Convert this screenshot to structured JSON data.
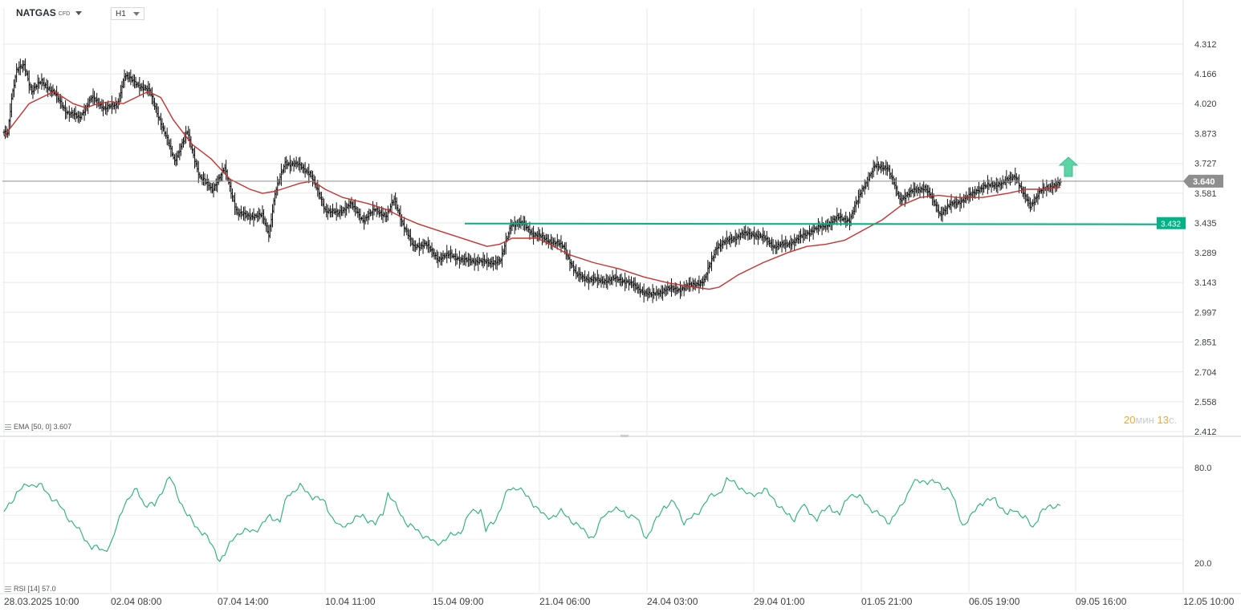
{
  "header": {
    "symbol": "NATGAS",
    "type": "CFD",
    "timeframe": "H1"
  },
  "price_axis_labels": [
    "4.312",
    "4.166",
    "4.020",
    "3.873",
    "3.727",
    "3.581",
    "3.435",
    "3.289",
    "3.143",
    "2.997",
    "2.851",
    "2.704",
    "2.558",
    "2.412"
  ],
  "rsi_axis_labels": [
    "80.0",
    "20.0"
  ],
  "time_axis_labels": [
    "28.03.2025  10:00",
    "02.04  08:00",
    "07.04  14:00",
    "10.04  11:00",
    "15.04  09:00",
    "21.04  06:00",
    "24.04  03:00",
    "29.04  01:00",
    "01.05  21:00",
    "06.05  19:00",
    "09.05  16:00",
    "12.05  10:00"
  ],
  "indicators": {
    "ema": {
      "name": "EMA",
      "params": "[50, 0]",
      "value": "3.607"
    },
    "rsi": {
      "name": "RSI",
      "params": "[14]",
      "value": "57.0"
    }
  },
  "last_price": {
    "value": "3.640",
    "bg": "#8e8e8e"
  },
  "level_line": {
    "value": "3.432",
    "color": "#00b386"
  },
  "countdown": {
    "min_value": "20",
    "min_unit": "мин",
    "sec_value": "13",
    "sec_unit": "с."
  },
  "colors": {
    "ema": "#c8322f",
    "rsi": "#26b07a",
    "bars": "#111111",
    "arrow": "#5dd4a6",
    "grid": "#e6e8eb"
  },
  "chart_data": [
    {
      "type": "ohlc",
      "instrument": "NATGAS CFD",
      "timeframe": "H1",
      "x": [
        "28.03.2025 10:00",
        "02.04 08:00",
        "07.04 14:00",
        "10.04 11:00",
        "15.04 09:00",
        "21.04 06:00",
        "24.04 03:00",
        "29.04 01:00",
        "01.05 21:00",
        "06.05 19:00"
      ],
      "close": [
        3.85,
        3.92,
        3.75,
        3.7,
        3.3,
        3.35,
        3.07,
        3.3,
        3.6,
        3.5
      ],
      "close_path": [
        [
          0,
          3.88
        ],
        [
          3,
          3.88
        ],
        [
          6,
          4.05
        ],
        [
          10,
          4.18
        ],
        [
          16,
          4.21
        ],
        [
          22,
          4.08
        ],
        [
          30,
          4.13
        ],
        [
          40,
          4.07
        ],
        [
          50,
          3.98
        ],
        [
          60,
          3.95
        ],
        [
          70,
          4.05
        ],
        [
          80,
          4.0
        ],
        [
          90,
          4.01
        ],
        [
          96,
          4.16
        ],
        [
          105,
          4.12
        ],
        [
          116,
          4.08
        ],
        [
          126,
          3.91
        ],
        [
          136,
          3.74
        ],
        [
          146,
          3.88
        ],
        [
          156,
          3.66
        ],
        [
          166,
          3.6
        ],
        [
          176,
          3.7
        ],
        [
          186,
          3.48
        ],
        [
          196,
          3.47
        ],
        [
          206,
          3.47
        ],
        [
          211,
          3.38
        ],
        [
          216,
          3.58
        ],
        [
          224,
          3.73
        ],
        [
          234,
          3.72
        ],
        [
          244,
          3.68
        ],
        [
          256,
          3.5
        ],
        [
          266,
          3.48
        ],
        [
          276,
          3.53
        ],
        [
          286,
          3.45
        ],
        [
          296,
          3.5
        ],
        [
          305,
          3.47
        ],
        [
          311,
          3.55
        ],
        [
          318,
          3.43
        ],
        [
          326,
          3.32
        ],
        [
          336,
          3.33
        ],
        [
          346,
          3.26
        ],
        [
          356,
          3.28
        ],
        [
          366,
          3.25
        ],
        [
          376,
          3.25
        ],
        [
          386,
          3.24
        ],
        [
          396,
          3.25
        ],
        [
          404,
          3.43
        ],
        [
          414,
          3.43
        ],
        [
          422,
          3.38
        ],
        [
          434,
          3.35
        ],
        [
          446,
          3.32
        ],
        [
          456,
          3.18
        ],
        [
          466,
          3.16
        ],
        [
          476,
          3.15
        ],
        [
          486,
          3.16
        ],
        [
          496,
          3.15
        ],
        [
          506,
          3.11
        ],
        [
          516,
          3.08
        ],
        [
          528,
          3.11
        ],
        [
          538,
          3.11
        ],
        [
          548,
          3.13
        ],
        [
          558,
          3.15
        ],
        [
          568,
          3.32
        ],
        [
          578,
          3.35
        ],
        [
          588,
          3.38
        ],
        [
          598,
          3.38
        ],
        [
          606,
          3.36
        ],
        [
          614,
          3.32
        ],
        [
          624,
          3.33
        ],
        [
          634,
          3.36
        ],
        [
          644,
          3.4
        ],
        [
          654,
          3.42
        ],
        [
          664,
          3.46
        ],
        [
          674,
          3.45
        ],
        [
          684,
          3.6
        ],
        [
          694,
          3.71
        ],
        [
          704,
          3.71
        ],
        [
          714,
          3.55
        ],
        [
          724,
          3.59
        ],
        [
          734,
          3.61
        ],
        [
          740,
          3.55
        ],
        [
          746,
          3.48
        ],
        [
          756,
          3.53
        ],
        [
          766,
          3.55
        ],
        [
          776,
          3.6
        ],
        [
          786,
          3.62
        ],
        [
          796,
          3.63
        ],
        [
          806,
          3.67
        ],
        [
          812,
          3.58
        ],
        [
          818,
          3.52
        ],
        [
          826,
          3.59
        ],
        [
          836,
          3.62
        ],
        [
          842,
          3.63
        ]
      ],
      "ema": {
        "name": "EMA [50, 0]",
        "last": 3.607,
        "path": [
          [
            0,
            3.86
          ],
          [
            20,
            4.02
          ],
          [
            40,
            4.08
          ],
          [
            55,
            4.02
          ],
          [
            65,
            4.0
          ],
          [
            75,
            4.02
          ],
          [
            85,
            4.03
          ],
          [
            95,
            4.02
          ],
          [
            105,
            4.05
          ],
          [
            115,
            4.08
          ],
          [
            125,
            4.05
          ],
          [
            135,
            3.94
          ],
          [
            150,
            3.82
          ],
          [
            165,
            3.75
          ],
          [
            180,
            3.65
          ],
          [
            196,
            3.6
          ],
          [
            206,
            3.58
          ],
          [
            216,
            3.59
          ],
          [
            226,
            3.61
          ],
          [
            236,
            3.63
          ],
          [
            246,
            3.64
          ],
          [
            256,
            3.6
          ],
          [
            270,
            3.56
          ],
          [
            290,
            3.53
          ],
          [
            305,
            3.5
          ],
          [
            315,
            3.47
          ],
          [
            330,
            3.43
          ],
          [
            350,
            3.39
          ],
          [
            370,
            3.35
          ],
          [
            385,
            3.32
          ],
          [
            395,
            3.33
          ],
          [
            405,
            3.36
          ],
          [
            415,
            3.36
          ],
          [
            425,
            3.36
          ],
          [
            435,
            3.33
          ],
          [
            450,
            3.28
          ],
          [
            470,
            3.24
          ],
          [
            490,
            3.21
          ],
          [
            510,
            3.17
          ],
          [
            530,
            3.14
          ],
          [
            550,
            3.12
          ],
          [
            562,
            3.11
          ],
          [
            570,
            3.12
          ],
          [
            585,
            3.18
          ],
          [
            605,
            3.24
          ],
          [
            625,
            3.29
          ],
          [
            640,
            3.32
          ],
          [
            655,
            3.33
          ],
          [
            670,
            3.35
          ],
          [
            685,
            3.4
          ],
          [
            700,
            3.45
          ],
          [
            715,
            3.52
          ],
          [
            730,
            3.56
          ],
          [
            745,
            3.57
          ],
          [
            760,
            3.56
          ],
          [
            780,
            3.56
          ],
          [
            800,
            3.58
          ],
          [
            815,
            3.6
          ],
          [
            826,
            3.6
          ],
          [
            842,
            3.61
          ]
        ]
      },
      "level": 3.432,
      "last_price": 3.64,
      "ylim": [
        2.412,
        4.38
      ],
      "y_ticks": [
        4.312,
        4.166,
        4.02,
        3.873,
        3.727,
        3.581,
        3.435,
        3.289,
        3.143,
        2.997,
        2.851,
        2.704,
        2.558,
        2.412
      ]
    },
    {
      "type": "line",
      "series": [
        {
          "name": "RSI [14]",
          "last": 57.0,
          "path": [
            [
              0,
              52
            ],
            [
              10,
              64
            ],
            [
              20,
              70
            ],
            [
              30,
              68
            ],
            [
              42,
              58
            ],
            [
              52,
              48
            ],
            [
              60,
              40
            ],
            [
              70,
              30
            ],
            [
              80,
              28
            ],
            [
              86,
              33
            ],
            [
              96,
              58
            ],
            [
              106,
              66
            ],
            [
              112,
              57
            ],
            [
              120,
              56
            ],
            [
              126,
              66
            ],
            [
              132,
              74
            ],
            [
              140,
              60
            ],
            [
              146,
              50
            ],
            [
              152,
              44
            ],
            [
              160,
              38
            ],
            [
              168,
              28
            ],
            [
              172,
              22
            ],
            [
              176,
              25
            ],
            [
              184,
              38
            ],
            [
              194,
              40
            ],
            [
              204,
              42
            ],
            [
              212,
              50
            ],
            [
              220,
              46
            ],
            [
              226,
              63
            ],
            [
              236,
              68
            ],
            [
              246,
              62
            ],
            [
              256,
              58
            ],
            [
              262,
              48
            ],
            [
              268,
              42
            ],
            [
              276,
              46
            ],
            [
              286,
              50
            ],
            [
              296,
              44
            ],
            [
              302,
              52
            ],
            [
              306,
              64
            ],
            [
              312,
              56
            ],
            [
              322,
              44
            ],
            [
              334,
              38
            ],
            [
              344,
              32
            ],
            [
              354,
              36
            ],
            [
              364,
              40
            ],
            [
              372,
              52
            ],
            [
              380,
              54
            ],
            [
              384,
              40
            ],
            [
              392,
              48
            ],
            [
              402,
              66
            ],
            [
              410,
              68
            ],
            [
              416,
              62
            ],
            [
              424,
              56
            ],
            [
              432,
              48
            ],
            [
              444,
              52
            ],
            [
              454,
              46
            ],
            [
              462,
              40
            ],
            [
              470,
              36
            ],
            [
              478,
              50
            ],
            [
              484,
              54
            ],
            [
              494,
              52
            ],
            [
              504,
              48
            ],
            [
              512,
              36
            ],
            [
              518,
              44
            ],
            [
              526,
              56
            ],
            [
              534,
              58
            ],
            [
              542,
              46
            ],
            [
              552,
              50
            ],
            [
              560,
              60
            ],
            [
              570,
              64
            ],
            [
              576,
              72
            ],
            [
              584,
              70
            ],
            [
              594,
              62
            ],
            [
              606,
              66
            ],
            [
              614,
              60
            ],
            [
              624,
              50
            ],
            [
              630,
              48
            ],
            [
              636,
              56
            ],
            [
              648,
              48
            ],
            [
              658,
              56
            ],
            [
              666,
              50
            ],
            [
              674,
              64
            ],
            [
              684,
              60
            ],
            [
              694,
              52
            ],
            [
              706,
              46
            ],
            [
              714,
              54
            ],
            [
              724,
              70
            ],
            [
              734,
              72
            ],
            [
              744,
              70
            ],
            [
              754,
              66
            ],
            [
              764,
              44
            ],
            [
              770,
              48
            ],
            [
              778,
              58
            ],
            [
              790,
              60
            ],
            [
              800,
              50
            ],
            [
              806,
              54
            ],
            [
              814,
              48
            ],
            [
              820,
              42
            ],
            [
              826,
              52
            ],
            [
              836,
              56
            ],
            [
              842,
              57
            ]
          ]
        }
      ],
      "y_ticks": [
        80.0,
        20.0
      ],
      "ylim": [
        10,
        90
      ]
    }
  ]
}
